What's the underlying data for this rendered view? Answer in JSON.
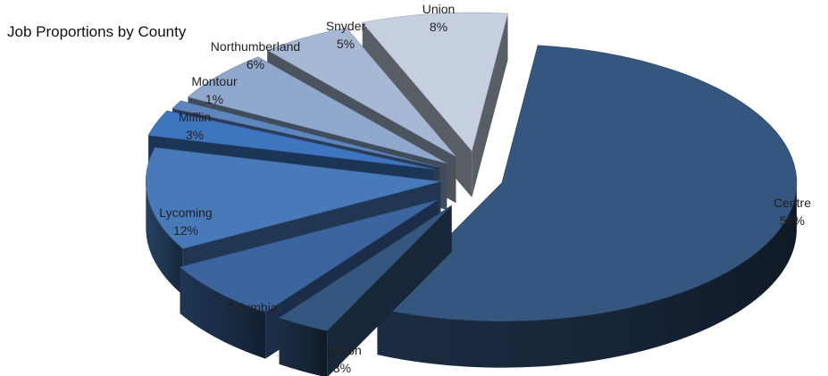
{
  "chart_data": {
    "type": "pie",
    "style": "3d-exploded",
    "title": "Job Proportions by County",
    "categories": [
      "Centre",
      "Clinton",
      "Columbia",
      "Lycoming",
      "Mifflin",
      "Montour",
      "Northumberland",
      "Snyder",
      "Union"
    ],
    "values": [
      55,
      3,
      7,
      12,
      3,
      1,
      6,
      5,
      8
    ],
    "value_labels": [
      "55%",
      "3%",
      "7%",
      "12%",
      "3%",
      "1%",
      "6%",
      "5%",
      "8%"
    ],
    "unit": "%",
    "data_labels": "outside",
    "legend": "none",
    "colors": {
      "Centre": "#34567f",
      "Clinton": "#34567f",
      "Columbia": "#3c65a0",
      "Lycoming": "#4879b8",
      "Mifflin": "#3f74be",
      "Montour": "#5d86bd",
      "Northumberland": "#8fa8cb",
      "Snyder": "#a7b8d4",
      "Union": "#c5cfe0"
    }
  }
}
